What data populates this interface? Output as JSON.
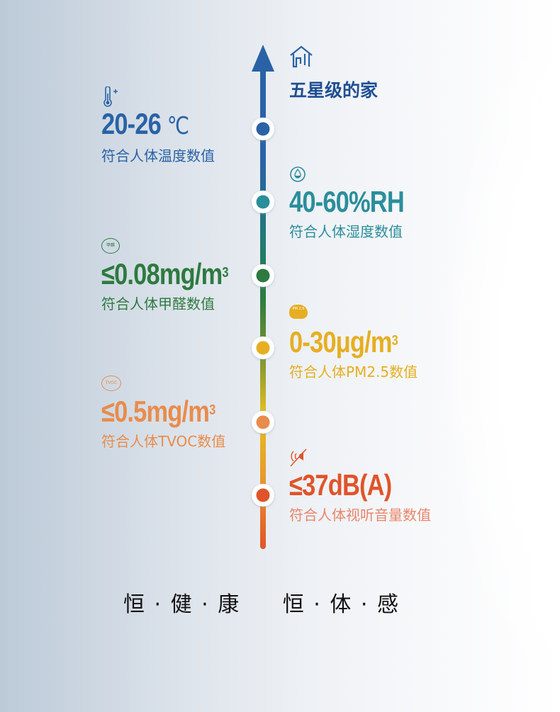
{
  "header": {
    "title": "五星级的家",
    "icon": "home-icon"
  },
  "colors": {
    "blue": "#2a62a6",
    "teal": "#2a8e9b",
    "green": "#2e7a40",
    "yellow": "#e6ae22",
    "orange": "#e88c4c",
    "red": "#e0542a"
  },
  "items": [
    {
      "icon": "thermometer-icon",
      "value": "20-26",
      "unit": "℃",
      "desc": "符合人体温度数值"
    },
    {
      "icon": "droplet-icon",
      "value": "40-60%RH",
      "desc": "符合人体湿度数值"
    },
    {
      "icon": "formaldehyde-icon",
      "icon_text": "甲醛",
      "value": "≤0.08mg/m",
      "sup": "3",
      "desc": "符合人体甲醛数值"
    },
    {
      "icon": "pm25-cloud-icon",
      "icon_text": "PM 2.5",
      "value": "0-30μg/m",
      "sup": "3",
      "desc": "符合人体PM2.5数值"
    },
    {
      "icon": "tvoc-icon",
      "icon_text": "TVOC",
      "value": "≤0.5mg/m",
      "sup": "3",
      "desc": "符合人体TVOC数值"
    },
    {
      "icon": "speaker-mute-icon",
      "value": "≤37dB(A)",
      "desc": "符合人体视听音量数值"
    }
  ],
  "slogan": {
    "left": "恒 · 健 · 康",
    "right": "恒 · 体 · 感"
  }
}
